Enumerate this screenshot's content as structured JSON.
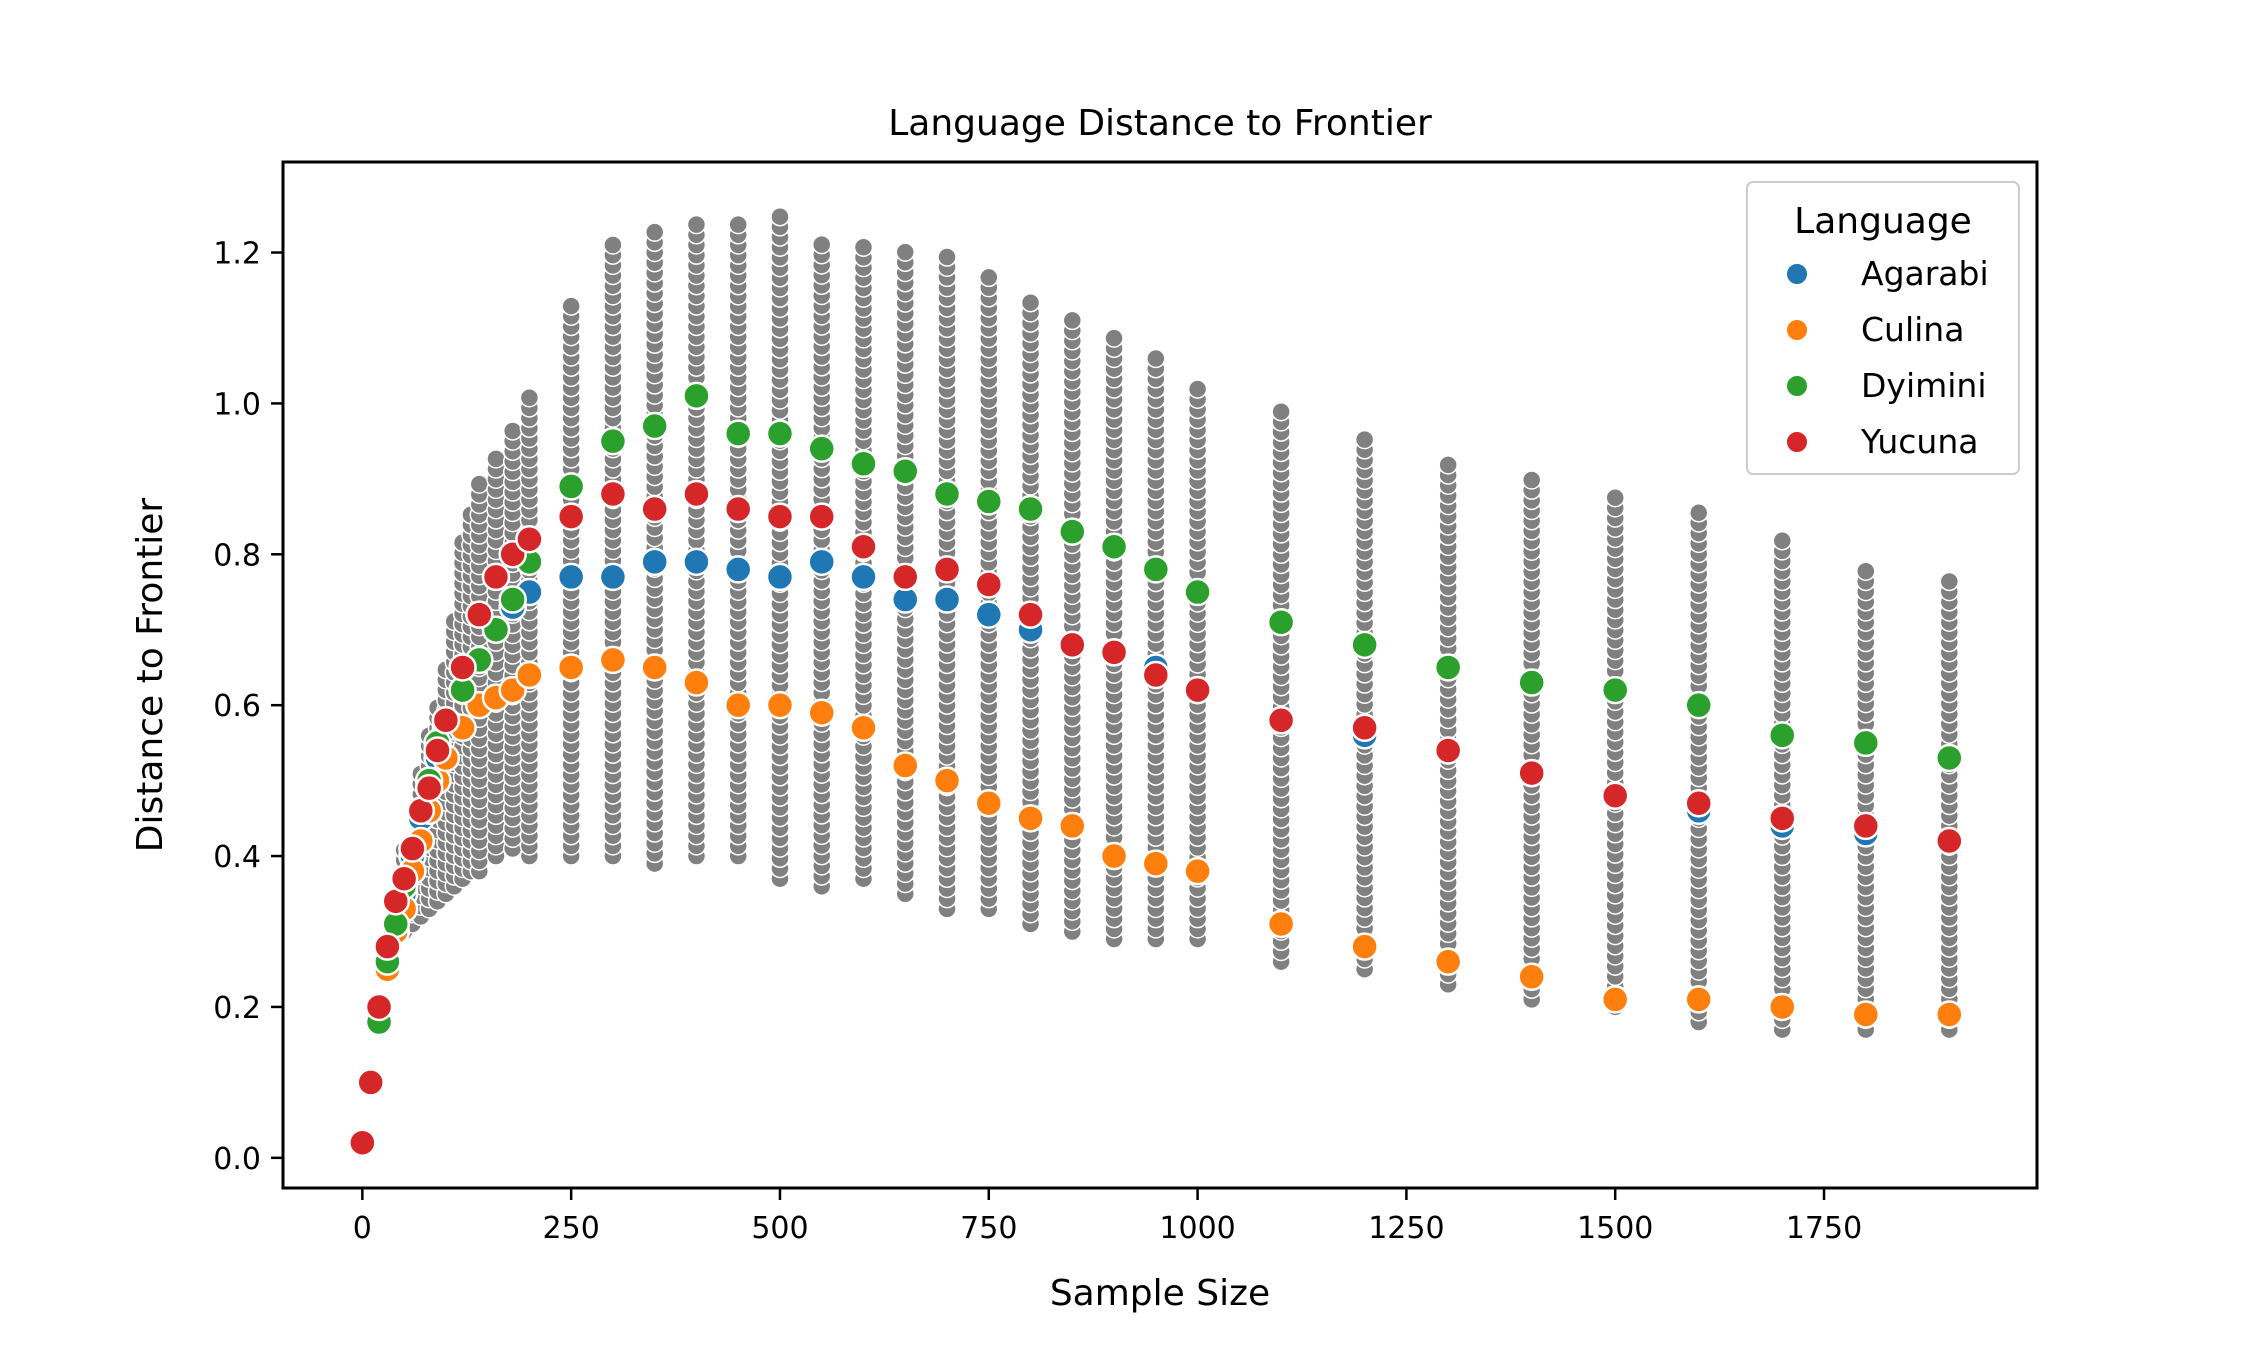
{
  "chart_data": {
    "type": "scatter",
    "title": "Language Distance to Frontier",
    "xlabel": "Sample Size",
    "ylabel": "Distance to Frontier",
    "xlim": [
      -95,
      2005
    ],
    "ylim": [
      -0.04,
      1.32
    ],
    "xticks": [
      0,
      250,
      500,
      750,
      1000,
      1250,
      1500,
      1750
    ],
    "yticks": [
      0.0,
      0.2,
      0.4,
      0.6,
      0.8,
      1.0,
      1.2
    ],
    "xtick_labels": [
      "0",
      "250",
      "500",
      "750",
      "1000",
      "1250",
      "1500",
      "1750"
    ],
    "ytick_labels": [
      "0.0",
      "0.2",
      "0.4",
      "0.6",
      "0.8",
      "1.0",
      "1.2"
    ],
    "grid": false,
    "legend": {
      "title": "Language",
      "placement": "top-right"
    },
    "background_series": {
      "color": "#808080",
      "columns": [
        {
          "x": 50,
          "min": 0.3,
          "max": 0.42
        },
        {
          "x": 60,
          "min": 0.31,
          "max": 0.43
        },
        {
          "x": 70,
          "min": 0.32,
          "max": 0.52
        },
        {
          "x": 80,
          "min": 0.33,
          "max": 0.56
        },
        {
          "x": 90,
          "min": 0.34,
          "max": 0.6
        },
        {
          "x": 100,
          "min": 0.35,
          "max": 0.66
        },
        {
          "x": 110,
          "min": 0.36,
          "max": 0.72
        },
        {
          "x": 120,
          "min": 0.37,
          "max": 0.82
        },
        {
          "x": 130,
          "min": 0.38,
          "max": 0.86
        },
        {
          "x": 140,
          "min": 0.38,
          "max": 0.9
        },
        {
          "x": 160,
          "min": 0.4,
          "max": 0.93
        },
        {
          "x": 180,
          "min": 0.41,
          "max": 0.97
        },
        {
          "x": 200,
          "min": 0.4,
          "max": 1.01
        },
        {
          "x": 250,
          "min": 0.4,
          "max": 1.14
        },
        {
          "x": 300,
          "min": 0.4,
          "max": 1.21
        },
        {
          "x": 350,
          "min": 0.39,
          "max": 1.23
        },
        {
          "x": 400,
          "min": 0.4,
          "max": 1.25
        },
        {
          "x": 450,
          "min": 0.4,
          "max": 1.25
        },
        {
          "x": 500,
          "min": 0.37,
          "max": 1.25
        },
        {
          "x": 550,
          "min": 0.36,
          "max": 1.22
        },
        {
          "x": 600,
          "min": 0.37,
          "max": 1.21
        },
        {
          "x": 650,
          "min": 0.35,
          "max": 1.21
        },
        {
          "x": 700,
          "min": 0.33,
          "max": 1.2
        },
        {
          "x": 750,
          "min": 0.33,
          "max": 1.17
        },
        {
          "x": 800,
          "min": 0.31,
          "max": 1.14
        },
        {
          "x": 850,
          "min": 0.3,
          "max": 1.12
        },
        {
          "x": 900,
          "min": 0.29,
          "max": 1.09
        },
        {
          "x": 950,
          "min": 0.29,
          "max": 1.06
        },
        {
          "x": 1000,
          "min": 0.29,
          "max": 1.03
        },
        {
          "x": 1100,
          "min": 0.26,
          "max": 0.99
        },
        {
          "x": 1200,
          "min": 0.25,
          "max": 0.96
        },
        {
          "x": 1300,
          "min": 0.23,
          "max": 0.93
        },
        {
          "x": 1400,
          "min": 0.21,
          "max": 0.91
        },
        {
          "x": 1500,
          "min": 0.2,
          "max": 0.88
        },
        {
          "x": 1600,
          "min": 0.18,
          "max": 0.86
        },
        {
          "x": 1700,
          "min": 0.17,
          "max": 0.82
        },
        {
          "x": 1800,
          "min": 0.17,
          "max": 0.79
        },
        {
          "x": 1900,
          "min": 0.17,
          "max": 0.77
        }
      ]
    },
    "x": [
      0,
      10,
      20,
      30,
      40,
      50,
      60,
      70,
      80,
      90,
      100,
      120,
      140,
      160,
      180,
      200,
      250,
      300,
      350,
      400,
      450,
      500,
      550,
      600,
      650,
      700,
      750,
      800,
      850,
      900,
      950,
      1000,
      1100,
      1200,
      1300,
      1400,
      1500,
      1600,
      1700,
      1800,
      1900
    ],
    "series": [
      {
        "name": "Agarabi",
        "color": "#1f77b4",
        "values": [
          0.02,
          0.1,
          0.18,
          0.25,
          0.3,
          0.35,
          0.4,
          0.45,
          0.49,
          0.53,
          0.57,
          0.62,
          0.66,
          0.7,
          0.73,
          0.75,
          0.77,
          0.77,
          0.79,
          0.79,
          0.78,
          0.77,
          0.79,
          0.77,
          0.74,
          0.74,
          0.72,
          0.7,
          0.68,
          0.67,
          0.65,
          0.62,
          0.58,
          0.56,
          0.54,
          0.51,
          0.48,
          0.46,
          0.44,
          0.43,
          0.42
        ]
      },
      {
        "name": "Culina",
        "color": "#ff7f0e",
        "values": [
          0.02,
          0.1,
          0.18,
          0.25,
          0.3,
          0.33,
          0.38,
          0.42,
          0.46,
          0.5,
          0.53,
          0.57,
          0.6,
          0.61,
          0.62,
          0.64,
          0.65,
          0.66,
          0.65,
          0.63,
          0.6,
          0.6,
          0.59,
          0.57,
          0.52,
          0.5,
          0.47,
          0.45,
          0.44,
          0.4,
          0.39,
          0.38,
          0.31,
          0.28,
          0.26,
          0.24,
          0.21,
          0.21,
          0.2,
          0.19,
          0.19
        ]
      },
      {
        "name": "Dyimini",
        "color": "#2ca02c",
        "values": [
          0.02,
          0.1,
          0.18,
          0.26,
          0.31,
          0.36,
          0.41,
          0.46,
          0.5,
          0.55,
          0.58,
          0.62,
          0.66,
          0.7,
          0.74,
          0.79,
          0.89,
          0.95,
          0.97,
          1.01,
          0.96,
          0.96,
          0.94,
          0.92,
          0.91,
          0.88,
          0.87,
          0.86,
          0.83,
          0.81,
          0.78,
          0.75,
          0.71,
          0.68,
          0.65,
          0.63,
          0.62,
          0.6,
          0.56,
          0.55,
          0.53
        ]
      },
      {
        "name": "Yucuna",
        "color": "#d62728",
        "values": [
          0.02,
          0.1,
          0.2,
          0.28,
          0.34,
          0.37,
          0.41,
          0.46,
          0.49,
          0.54,
          0.58,
          0.65,
          0.72,
          0.77,
          0.8,
          0.82,
          0.85,
          0.88,
          0.86,
          0.88,
          0.86,
          0.85,
          0.85,
          0.81,
          0.77,
          0.78,
          0.76,
          0.72,
          0.68,
          0.67,
          0.64,
          0.62,
          0.58,
          0.57,
          0.54,
          0.51,
          0.48,
          0.47,
          0.45,
          0.44,
          0.42
        ]
      }
    ]
  }
}
